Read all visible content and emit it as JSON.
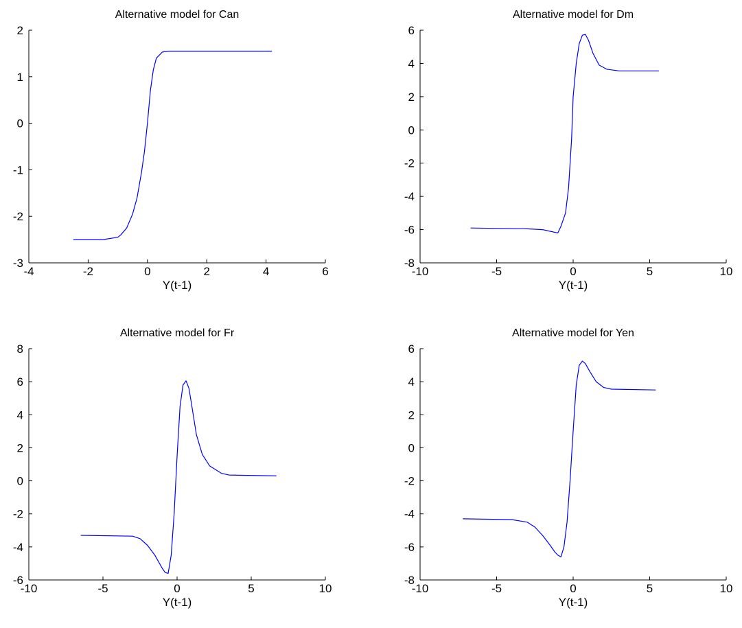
{
  "chart_data": [
    {
      "type": "line",
      "title": "Alternative model for Can",
      "xlabel": "Y(t-1)",
      "ylabel": "",
      "xlim": [
        -4,
        6
      ],
      "ylim": [
        -3,
        2
      ],
      "xticks": [
        -4,
        -2,
        0,
        2,
        4,
        6
      ],
      "yticks": [
        -3,
        -2,
        -1,
        0,
        1,
        2
      ],
      "grid": false,
      "color": "#0000ff",
      "series": [
        {
          "x": [
            -2.5,
            -1.5,
            -1.0,
            -0.9,
            -0.7,
            -0.5,
            -0.35,
            -0.2,
            -0.1,
            0.0,
            0.1,
            0.2,
            0.3,
            0.5,
            0.7,
            1.0,
            4.2
          ],
          "y": [
            -2.5,
            -2.5,
            -2.45,
            -2.4,
            -2.25,
            -1.95,
            -1.6,
            -1.05,
            -0.6,
            0.0,
            0.7,
            1.15,
            1.4,
            1.53,
            1.55,
            1.55,
            1.55
          ]
        }
      ]
    },
    {
      "type": "line",
      "title": "Alternative model for Dm",
      "xlabel": "Y(t-1)",
      "ylabel": "",
      "xlim": [
        -10,
        10
      ],
      "ylim": [
        -8,
        6
      ],
      "xticks": [
        -10,
        -5,
        0,
        5,
        10
      ],
      "yticks": [
        -8,
        -6,
        -4,
        -2,
        0,
        2,
        4,
        6
      ],
      "grid": false,
      "color": "#0000ff",
      "series": [
        {
          "x": [
            -6.7,
            -3.0,
            -2.0,
            -1.5,
            -1.0,
            -0.8,
            -0.5,
            -0.3,
            -0.1,
            0.0,
            0.2,
            0.4,
            0.6,
            0.8,
            1.0,
            1.3,
            1.7,
            2.2,
            3.0,
            5.6
          ],
          "y": [
            -5.9,
            -5.95,
            -6.0,
            -6.1,
            -6.2,
            -5.8,
            -5.0,
            -3.5,
            -0.5,
            2.0,
            4.0,
            5.2,
            5.7,
            5.75,
            5.4,
            4.6,
            3.9,
            3.65,
            3.55,
            3.55
          ]
        }
      ]
    },
    {
      "type": "line",
      "title": "Alternative model for Fr",
      "xlabel": "Y(t-1)",
      "ylabel": "",
      "xlim": [
        -10,
        10
      ],
      "ylim": [
        -6,
        8
      ],
      "xticks": [
        -10,
        -5,
        0,
        5,
        10
      ],
      "yticks": [
        -6,
        -4,
        -2,
        0,
        2,
        4,
        6,
        8
      ],
      "grid": false,
      "color": "#0000ff",
      "series": [
        {
          "x": [
            -6.5,
            -3.0,
            -2.5,
            -2.0,
            -1.5,
            -1.0,
            -0.8,
            -0.6,
            -0.4,
            -0.2,
            0.0,
            0.2,
            0.4,
            0.6,
            0.8,
            1.0,
            1.3,
            1.7,
            2.2,
            3.0,
            3.5,
            6.7
          ],
          "y": [
            -3.3,
            -3.35,
            -3.5,
            -3.9,
            -4.5,
            -5.3,
            -5.55,
            -5.6,
            -4.5,
            -2.0,
            1.5,
            4.5,
            5.8,
            6.05,
            5.6,
            4.5,
            2.8,
            1.6,
            0.9,
            0.45,
            0.35,
            0.3
          ]
        }
      ]
    },
    {
      "type": "line",
      "title": "Alternative model for Yen",
      "xlabel": "Y(t-1)",
      "ylabel": "",
      "xlim": [
        -10,
        10
      ],
      "ylim": [
        -8,
        6
      ],
      "xticks": [
        -10,
        -5,
        0,
        5,
        10
      ],
      "yticks": [
        -8,
        -6,
        -4,
        -2,
        0,
        2,
        4,
        6
      ],
      "grid": false,
      "color": "#0000ff",
      "series": [
        {
          "x": [
            -7.2,
            -4.0,
            -3.0,
            -2.5,
            -2.0,
            -1.5,
            -1.2,
            -1.0,
            -0.8,
            -0.6,
            -0.4,
            -0.2,
            0.0,
            0.2,
            0.4,
            0.6,
            0.8,
            1.1,
            1.5,
            2.0,
            2.5,
            5.4
          ],
          "y": [
            -4.3,
            -4.35,
            -4.5,
            -4.8,
            -5.3,
            -5.9,
            -6.3,
            -6.5,
            -6.6,
            -6.0,
            -4.5,
            -2.0,
            1.0,
            3.8,
            5.0,
            5.25,
            5.1,
            4.6,
            4.0,
            3.65,
            3.55,
            3.5
          ]
        }
      ]
    }
  ]
}
